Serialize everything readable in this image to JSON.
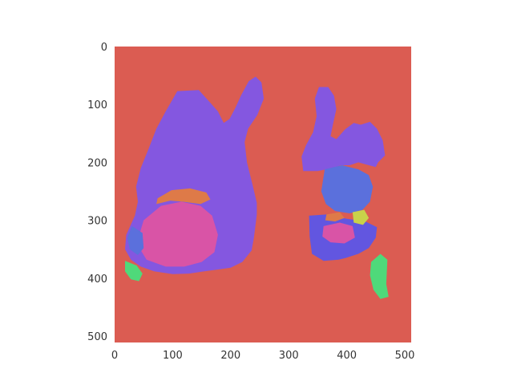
{
  "colors": {
    "background": "#db5c52",
    "tissue_main": "#8457e0",
    "blue_region": "#5b70dc",
    "indigo_region": "#6256e0",
    "pink_region": "#d954a6",
    "orange_region": "#de7a48",
    "green_region": "#4fd97a",
    "yellow_region": "#c8d24a",
    "tick_text": "#333333"
  },
  "chart_data": {
    "type": "heatmap",
    "title": "",
    "xlabel": "",
    "ylabel": "",
    "xlim": [
      0,
      511
    ],
    "ylim": [
      511,
      0
    ],
    "grid": false,
    "x_ticks": [
      0,
      100,
      200,
      300,
      400,
      500
    ],
    "y_ticks": [
      0,
      100,
      200,
      300,
      400,
      500
    ],
    "x_tick_labels": [
      "0",
      "100",
      "200",
      "300",
      "400",
      "500"
    ],
    "y_tick_labels": [
      "0",
      "100",
      "200",
      "300",
      "400",
      "500"
    ],
    "segments": [
      {
        "label": "background",
        "color": "#db5c52"
      },
      {
        "label": "left-lung",
        "color": "#8457e0",
        "polygon": [
          [
            108,
            77
          ],
          [
            145,
            75
          ],
          [
            163,
            95
          ],
          [
            178,
            112
          ],
          [
            188,
            132
          ],
          [
            198,
            125
          ],
          [
            208,
            106
          ],
          [
            218,
            84
          ],
          [
            231,
            60
          ],
          [
            243,
            52
          ],
          [
            253,
            62
          ],
          [
            257,
            90
          ],
          [
            246,
            118
          ],
          [
            230,
            142
          ],
          [
            224,
            165
          ],
          [
            228,
            200
          ],
          [
            238,
            240
          ],
          [
            245,
            270
          ],
          [
            245,
            290
          ],
          [
            240,
            330
          ],
          [
            236,
            352
          ],
          [
            220,
            372
          ],
          [
            200,
            382
          ],
          [
            178,
            385
          ],
          [
            155,
            388
          ],
          [
            128,
            392
          ],
          [
            100,
            393
          ],
          [
            68,
            388
          ],
          [
            45,
            380
          ],
          [
            28,
            368
          ],
          [
            18,
            350
          ],
          [
            20,
            325
          ],
          [
            35,
            292
          ],
          [
            40,
            268
          ],
          [
            37,
            242
          ],
          [
            45,
            210
          ],
          [
            58,
            178
          ],
          [
            72,
            142
          ],
          [
            88,
            112
          ]
        ]
      },
      {
        "label": "right-lung-upper",
        "color": "#8457e0",
        "polygon": [
          [
            345,
            90
          ],
          [
            352,
            70
          ],
          [
            368,
            70
          ],
          [
            378,
            85
          ],
          [
            382,
            108
          ],
          [
            376,
            135
          ],
          [
            372,
            155
          ],
          [
            382,
            160
          ],
          [
            397,
            143
          ],
          [
            412,
            132
          ],
          [
            424,
            135
          ],
          [
            440,
            130
          ],
          [
            452,
            142
          ],
          [
            462,
            162
          ],
          [
            466,
            188
          ],
          [
            454,
            200
          ],
          [
            450,
            208
          ],
          [
            438,
            205
          ],
          [
            420,
            200
          ],
          [
            405,
            205
          ],
          [
            390,
            205
          ],
          [
            375,
            210
          ],
          [
            350,
            215
          ],
          [
            325,
            215
          ],
          [
            322,
            190
          ],
          [
            330,
            170
          ],
          [
            342,
            148
          ],
          [
            348,
            120
          ]
        ]
      },
      {
        "label": "right-lung-lower",
        "color": "#6256e0",
        "polygon": [
          [
            335,
            292
          ],
          [
            365,
            290
          ],
          [
            398,
            297
          ],
          [
            432,
            302
          ],
          [
            452,
            312
          ],
          [
            450,
            330
          ],
          [
            438,
            348
          ],
          [
            420,
            358
          ],
          [
            398,
            365
          ],
          [
            386,
            368
          ],
          [
            360,
            370
          ],
          [
            340,
            358
          ],
          [
            336,
            328
          ]
        ]
      },
      {
        "label": "right-lung-blue",
        "color": "#5b70dc",
        "polygon": [
          [
            362,
            212
          ],
          [
            392,
            205
          ],
          [
            420,
            212
          ],
          [
            438,
            222
          ],
          [
            445,
            242
          ],
          [
            440,
            268
          ],
          [
            427,
            282
          ],
          [
            405,
            288
          ],
          [
            380,
            284
          ],
          [
            364,
            272
          ],
          [
            356,
            250
          ]
        ]
      },
      {
        "label": "left-pink",
        "color": "#d954a6",
        "polygon": [
          [
            50,
            300
          ],
          [
            80,
            275
          ],
          [
            115,
            268
          ],
          [
            148,
            275
          ],
          [
            168,
            292
          ],
          [
            178,
            325
          ],
          [
            172,
            355
          ],
          [
            150,
            372
          ],
          [
            120,
            380
          ],
          [
            88,
            380
          ],
          [
            55,
            368
          ],
          [
            38,
            340
          ]
        ]
      },
      {
        "label": "left-orange",
        "color": "#de7a48",
        "polygon": [
          [
            98,
            248
          ],
          [
            130,
            245
          ],
          [
            158,
            252
          ],
          [
            165,
            264
          ],
          [
            148,
            272
          ],
          [
            118,
            268
          ],
          [
            96,
            266
          ],
          [
            72,
            272
          ],
          [
            74,
            262
          ]
        ]
      },
      {
        "label": "left-blue",
        "color": "#5b70dc",
        "polygon": [
          [
            30,
            310
          ],
          [
            48,
            322
          ],
          [
            50,
            348
          ],
          [
            40,
            360
          ],
          [
            26,
            350
          ],
          [
            22,
            330
          ]
        ]
      },
      {
        "label": "left-green",
        "color": "#4fd97a",
        "polygon": [
          [
            18,
            370
          ],
          [
            38,
            378
          ],
          [
            48,
            392
          ],
          [
            42,
            405
          ],
          [
            28,
            402
          ],
          [
            18,
            388
          ]
        ]
      },
      {
        "label": "right-pink",
        "color": "#d954a6",
        "polygon": [
          [
            360,
            310
          ],
          [
            388,
            304
          ],
          [
            410,
            310
          ],
          [
            414,
            330
          ],
          [
            396,
            340
          ],
          [
            372,
            338
          ],
          [
            358,
            328
          ]
        ]
      },
      {
        "label": "right-orange",
        "color": "#de7a48",
        "polygon": [
          [
            365,
            290
          ],
          [
            388,
            286
          ],
          [
            396,
            296
          ],
          [
            380,
            302
          ],
          [
            363,
            300
          ]
        ]
      },
      {
        "label": "right-yellow",
        "color": "#c8d24a",
        "polygon": [
          [
            410,
            286
          ],
          [
            430,
            282
          ],
          [
            438,
            296
          ],
          [
            428,
            308
          ],
          [
            412,
            304
          ]
        ]
      },
      {
        "label": "right-green",
        "color": "#4fd97a",
        "polygon": [
          [
            442,
            372
          ],
          [
            458,
            358
          ],
          [
            470,
            368
          ],
          [
            468,
            410
          ],
          [
            472,
            432
          ],
          [
            458,
            436
          ],
          [
            446,
            420
          ],
          [
            440,
            395
          ]
        ]
      }
    ]
  }
}
